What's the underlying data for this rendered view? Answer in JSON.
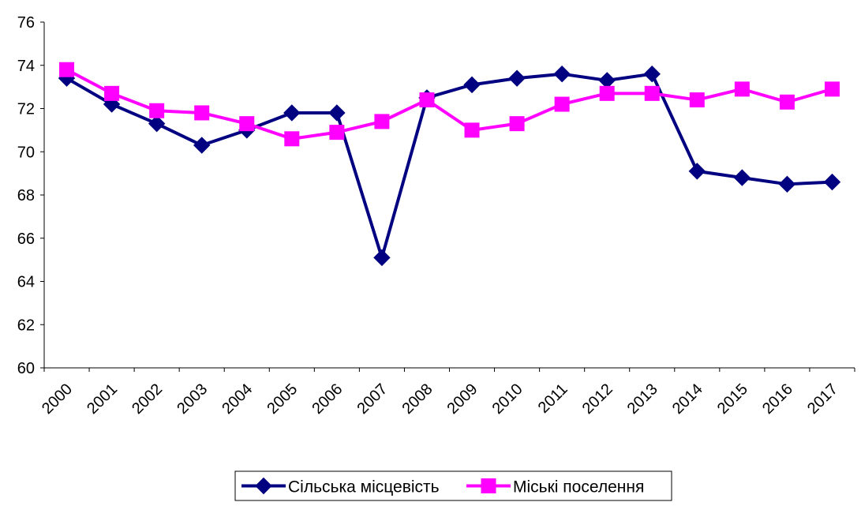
{
  "chart_data": {
    "type": "line",
    "title": "",
    "xlabel": "",
    "ylabel": "",
    "categories": [
      "2000",
      "2001",
      "2002",
      "2003",
      "2004",
      "2005",
      "2006",
      "2007",
      "2008",
      "2009",
      "2010",
      "2011",
      "2012",
      "2013",
      "2014",
      "2015",
      "2016",
      "2017"
    ],
    "ylim": [
      60,
      76
    ],
    "yticks": [
      "60",
      "62",
      "64",
      "66",
      "68",
      "70",
      "72",
      "74",
      "76"
    ],
    "grid": false,
    "legend_position": "bottom",
    "series": [
      {
        "name": "Сільська місцевість",
        "color": "#000080",
        "marker": "diamond",
        "values": [
          73.4,
          72.2,
          71.3,
          70.3,
          71.0,
          71.8,
          71.8,
          65.1,
          72.5,
          73.1,
          73.4,
          73.6,
          73.3,
          73.6,
          69.1,
          68.8,
          68.5,
          68.6
        ]
      },
      {
        "name": "Міські поселення",
        "color": "#FF00FF",
        "marker": "square",
        "values": [
          73.8,
          72.7,
          71.9,
          71.8,
          71.3,
          70.6,
          70.9,
          71.4,
          72.4,
          71.0,
          71.3,
          72.2,
          72.7,
          72.7,
          72.4,
          72.9,
          72.3,
          72.9
        ]
      }
    ]
  }
}
